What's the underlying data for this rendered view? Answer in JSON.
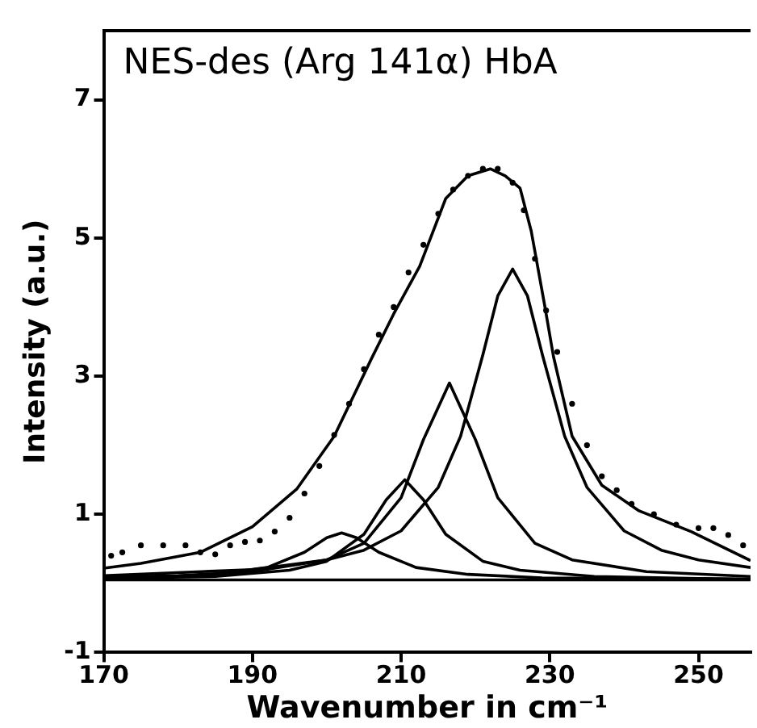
{
  "chart_data": {
    "type": "line",
    "title": "NES-des (Arg 141α) HbA",
    "xlabel": "Wavenumber in cm⁻¹",
    "ylabel": "Intensity (a.u.)",
    "xlim": [
      170,
      257
    ],
    "xticks": [
      170,
      190,
      210,
      230,
      250
    ],
    "ylim": [
      -1,
      8
    ],
    "yticks": [
      -1,
      1,
      3,
      5,
      7
    ],
    "grid": false,
    "legend": false,
    "series": [
      {
        "type": "scatter",
        "marker": "circle",
        "color": "#000000",
        "x": [
          171,
          172.5,
          175,
          178,
          181,
          183,
          185,
          187,
          189,
          191,
          193,
          195,
          197,
          199,
          201,
          203,
          205,
          207,
          209,
          211,
          213,
          215,
          217,
          219,
          221,
          223,
          225,
          226.5,
          228,
          229.5,
          231,
          233,
          235,
          237,
          239,
          241,
          244,
          247,
          250,
          252,
          254,
          256
        ],
        "values": [
          0.4,
          0.45,
          0.55,
          0.55,
          0.55,
          0.45,
          0.42,
          0.55,
          0.6,
          0.62,
          0.75,
          0.95,
          1.3,
          1.7,
          2.15,
          2.6,
          3.1,
          3.6,
          4.0,
          4.5,
          4.9,
          5.35,
          5.7,
          5.9,
          6.0,
          6.0,
          5.8,
          5.4,
          4.7,
          3.95,
          3.35,
          2.6,
          2.0,
          1.55,
          1.35,
          1.15,
          1.0,
          0.85,
          0.8,
          0.8,
          0.7,
          0.55
        ]
      },
      {
        "color": "#000000",
        "x": [
          170,
          175,
          183,
          190,
          196,
          201,
          206,
          209,
          212.5,
          216,
          219,
          222,
          224,
          226,
          227.5,
          229.3,
          230.5,
          233,
          237,
          242,
          249,
          257
        ],
        "values": [
          0.22,
          0.29,
          0.45,
          0.82,
          1.37,
          2.13,
          3.25,
          3.9,
          4.59,
          5.57,
          5.9,
          6.0,
          5.9,
          5.72,
          5.1,
          4.03,
          3.28,
          2.13,
          1.42,
          1.05,
          0.75,
          0.33
        ]
      },
      {
        "color": "#000000",
        "x": [
          170,
          190,
          200,
          205,
          210,
          215,
          218,
          221,
          223,
          225,
          227,
          229,
          232,
          235,
          240,
          245,
          250,
          257
        ],
        "values": [
          0.11,
          0.2,
          0.34,
          0.48,
          0.76,
          1.39,
          2.13,
          3.31,
          4.16,
          4.55,
          4.16,
          3.31,
          2.13,
          1.39,
          0.76,
          0.48,
          0.34,
          0.23
        ]
      },
      {
        "color": "#000000",
        "x": [
          170,
          180,
          190,
          200,
          205,
          210,
          213,
          216.5,
          220,
          223,
          228,
          233,
          243,
          257
        ],
        "values": [
          0.09,
          0.11,
          0.17,
          0.34,
          0.58,
          1.24,
          2.08,
          2.9,
          2.08,
          1.24,
          0.58,
          0.34,
          0.17,
          0.1
        ]
      },
      {
        "color": "#000000",
        "x": [
          170,
          185,
          195,
          200,
          205,
          208,
          210.5,
          213,
          216,
          221,
          226,
          236,
          250,
          257
        ],
        "values": [
          0.07,
          0.1,
          0.19,
          0.32,
          0.71,
          1.21,
          1.5,
          1.21,
          0.71,
          0.32,
          0.19,
          0.1,
          0.07,
          0.06
        ]
      },
      {
        "color": "#000000",
        "x": [
          170,
          175,
          185,
          192,
          197,
          200,
          202,
          204,
          207,
          212,
          219,
          229,
          257
        ],
        "values": [
          0.07,
          0.08,
          0.13,
          0.23,
          0.45,
          0.66,
          0.73,
          0.66,
          0.45,
          0.23,
          0.13,
          0.08,
          0.06
        ]
      },
      {
        "color": "#000000",
        "x": [
          170,
          257
        ],
        "values": [
          0.05,
          0.05
        ]
      }
    ]
  }
}
